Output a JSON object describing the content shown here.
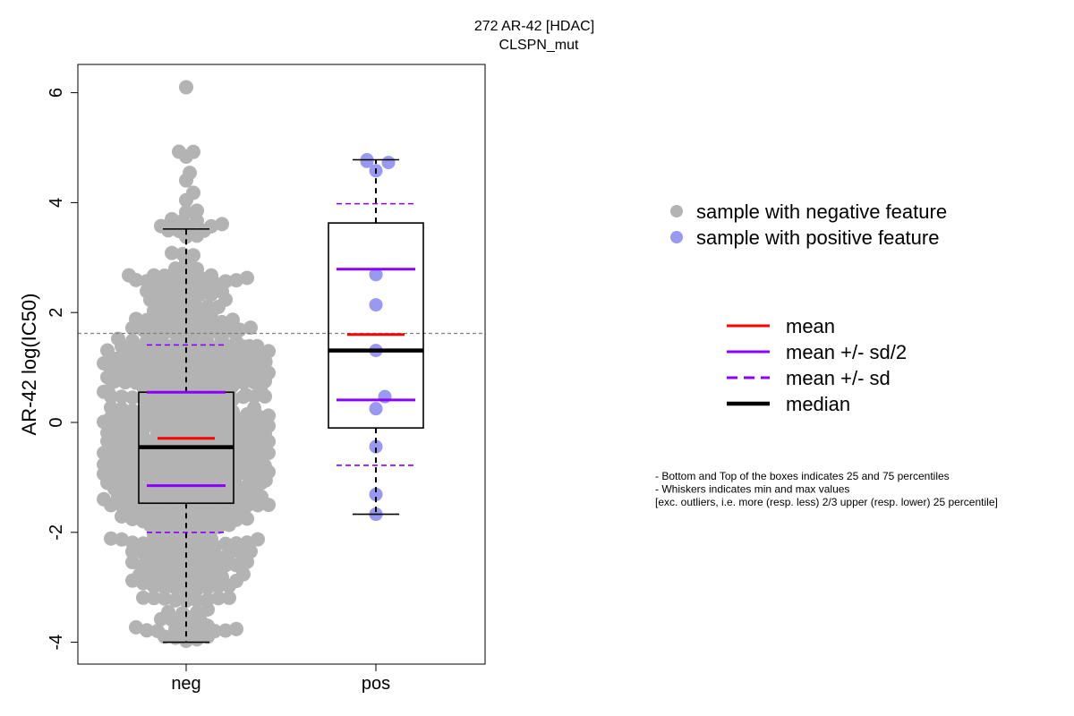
{
  "chart_data": {
    "type": "scatter",
    "title": "272 AR-42 [HDAC]",
    "subtitle": "CLSPN_mut",
    "ylabel": "AR-42 log(IC50)",
    "xlabel": "",
    "ylim": [
      -4.4,
      6.5
    ],
    "yticks": [
      -4,
      -2,
      0,
      2,
      4,
      6
    ],
    "categories": [
      "neg",
      "pos"
    ],
    "reference_line_y": 1.62,
    "colors": {
      "negative_points": "#b3b3b3",
      "positive_points": "#9999f2",
      "mean": "#ff0000",
      "sd": "#8b00ff",
      "median": "#000000",
      "reference_line": "#808080"
    },
    "groups": [
      {
        "name": "neg",
        "point_count": 650,
        "box": {
          "q1": -1.47,
          "median": -0.45,
          "q3": 0.55,
          "whisker_low": -4.0,
          "whisker_high": 3.52
        },
        "mean": -0.29,
        "mean_minus_half_sd": -1.15,
        "mean_plus_half_sd": 0.55,
        "mean_minus_sd": -2.0,
        "mean_plus_sd": 1.41
      },
      {
        "name": "pos",
        "point_count": 13,
        "points": [
          4.78,
          4.73,
          4.58,
          2.69,
          2.14,
          1.31,
          0.47,
          0.25,
          -0.44,
          -1.31,
          -1.67,
          -1.67,
          4.75
        ],
        "box": {
          "q1": -0.1,
          "median": 1.31,
          "q3": 3.63,
          "whisker_low": -1.67,
          "whisker_high": 4.78
        },
        "mean": 1.6,
        "mean_minus_half_sd": 0.41,
        "mean_plus_half_sd": 2.79,
        "mean_minus_sd": -0.78,
        "mean_plus_sd": 3.98
      }
    ],
    "legend_points": [
      {
        "label": "sample with negative feature",
        "color": "#b3b3b3"
      },
      {
        "label": "sample with positive feature",
        "color": "#9999f2"
      }
    ],
    "legend_lines": [
      {
        "label": "mean",
        "color": "#ff0000",
        "style": "solid"
      },
      {
        "label": "mean +/- sd/2",
        "color": "#8b00ff",
        "style": "solid"
      },
      {
        "label": "mean +/- sd",
        "color": "#8b00ff",
        "style": "dashed"
      },
      {
        "label": "median",
        "color": "#000000",
        "style": "thick"
      }
    ],
    "notes": [
      "- Bottom and Top of the boxes indicates 25 and 75 percentiles",
      "- Whiskers indicates min and max values",
      "[exc. outliers, i.e. more (resp. less) 2/3 upper (resp. lower) 25 percentile]"
    ]
  }
}
